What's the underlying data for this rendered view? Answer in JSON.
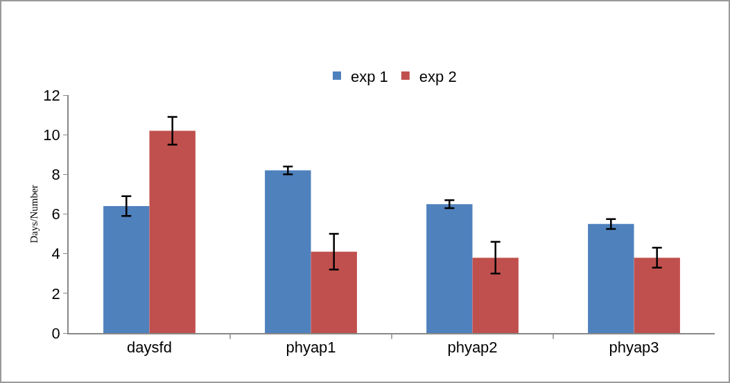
{
  "chart_data": {
    "type": "bar",
    "ylabel": "Days/Number",
    "categories": [
      "daysfd",
      "phyap1",
      "phyap2",
      "phyap3"
    ],
    "series": [
      {
        "name": "exp 1",
        "color": "#4f81bd",
        "values": [
          6.4,
          8.2,
          6.5,
          5.5
        ],
        "errors": [
          0.5,
          0.2,
          0.2,
          0.25
        ]
      },
      {
        "name": "exp 2",
        "color": "#c0504d",
        "values": [
          10.2,
          4.1,
          3.8,
          3.8
        ],
        "errors": [
          0.7,
          0.9,
          0.8,
          0.5
        ]
      }
    ],
    "ylim": [
      0,
      12
    ],
    "yticks": [
      0,
      2,
      4,
      6,
      8,
      10,
      12
    ],
    "grid": false,
    "legend": "top"
  }
}
